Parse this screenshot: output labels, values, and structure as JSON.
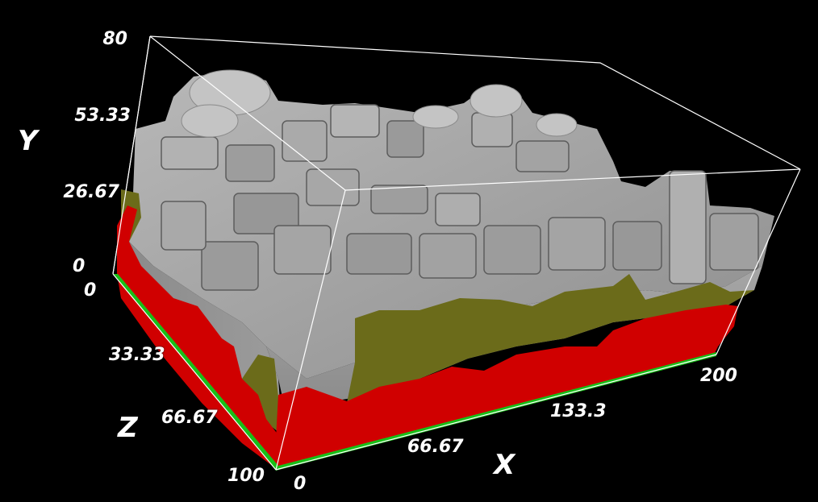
{
  "axes": {
    "y": {
      "title": "Y",
      "ticks": [
        "80",
        "53.33",
        "26.67",
        "0"
      ]
    },
    "z": {
      "title": "Z",
      "ticks": [
        "0",
        "33.33",
        "66.67",
        "100"
      ]
    },
    "x": {
      "title": "X",
      "ticks": [
        "0",
        "66.67",
        "133.3",
        "200"
      ]
    }
  },
  "colors": {
    "background": "#000000",
    "grain_top": "#a9a9a9",
    "grain_side": "#8c8c8c",
    "grain_dark": "#6f6f6f",
    "layer_olive": "#6b6b1a",
    "layer_red": "#d00000",
    "base_green": "#18c018",
    "box_edge": "#ffffff"
  }
}
